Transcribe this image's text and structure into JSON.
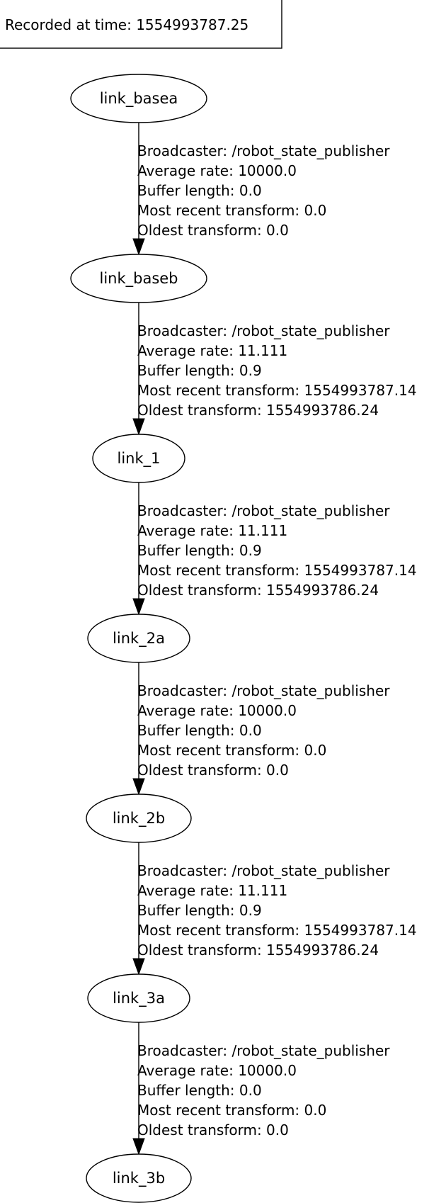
{
  "header": {
    "recorded_label": "Recorded at time: 1554993787.25"
  },
  "nodes": [
    {
      "id": "link_basea",
      "label": "link_basea"
    },
    {
      "id": "link_baseb",
      "label": "link_baseb"
    },
    {
      "id": "link_1",
      "label": "link_1"
    },
    {
      "id": "link_2a",
      "label": "link_2a"
    },
    {
      "id": "link_2b",
      "label": "link_2b"
    },
    {
      "id": "link_3a",
      "label": "link_3a"
    },
    {
      "id": "link_3b",
      "label": "link_3b"
    }
  ],
  "edges": [
    {
      "from": "link_basea",
      "to": "link_baseb",
      "lines": [
        "Broadcaster: /robot_state_publisher",
        "Average rate: 10000.0",
        "Buffer length: 0.0",
        "Most recent transform: 0.0",
        "Oldest transform: 0.0"
      ]
    },
    {
      "from": "link_baseb",
      "to": "link_1",
      "lines": [
        "Broadcaster: /robot_state_publisher",
        "Average rate: 11.111",
        "Buffer length: 0.9",
        "Most recent transform: 1554993787.14",
        "Oldest transform: 1554993786.24"
      ]
    },
    {
      "from": "link_1",
      "to": "link_2a",
      "lines": [
        "Broadcaster: /robot_state_publisher",
        "Average rate: 11.111",
        "Buffer length: 0.9",
        "Most recent transform: 1554993787.14",
        "Oldest transform: 1554993786.24"
      ]
    },
    {
      "from": "link_2a",
      "to": "link_2b",
      "lines": [
        "Broadcaster: /robot_state_publisher",
        "Average rate: 10000.0",
        "Buffer length: 0.0",
        "Most recent transform: 0.0",
        "Oldest transform: 0.0"
      ]
    },
    {
      "from": "link_2b",
      "to": "link_3a",
      "lines": [
        "Broadcaster: /robot_state_publisher",
        "Average rate: 11.111",
        "Buffer length: 0.9",
        "Most recent transform: 1554993787.14",
        "Oldest transform: 1554993786.24"
      ]
    },
    {
      "from": "link_3a",
      "to": "link_3b",
      "lines": [
        "Broadcaster: /robot_state_publisher",
        "Average rate: 10000.0",
        "Buffer length: 0.0",
        "Most recent transform: 0.0",
        "Oldest transform: 0.0"
      ]
    }
  ]
}
